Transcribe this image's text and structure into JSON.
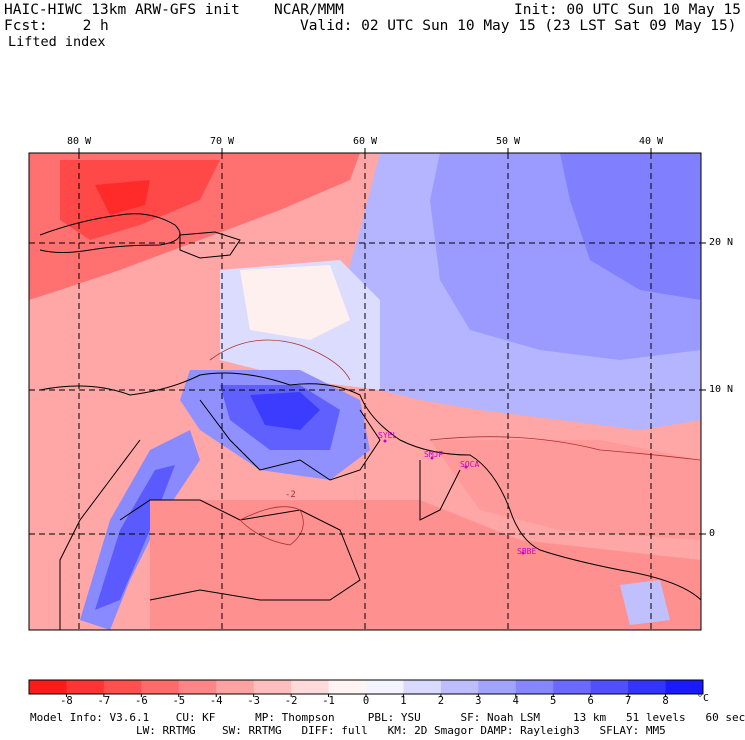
{
  "header": {
    "model": "HAIC-HIWC 13km ARW-GFS init",
    "org": "NCAR/MMM",
    "init": "Init: 00 UTC Sun 10 May 15",
    "fcst": "Fcst:    2 h",
    "valid": "Valid: 02 UTC Sun 10 May 15 (23 LST Sat 09 May 15)",
    "field": "Lifted index"
  },
  "map": {
    "lon_labels": [
      "80 W",
      "70 W",
      "60 W",
      "50 W",
      "40 W"
    ],
    "lat_labels": [
      "20 N",
      "10 N",
      "0"
    ],
    "stations": [
      "SYEL",
      "SMJP",
      "SOCA",
      "SBBE"
    ],
    "contour_label": "-2"
  },
  "colorbar": {
    "labels": [
      "-8",
      "-7",
      "-6",
      "-5",
      "-4",
      "-3",
      "-2",
      "-1",
      "0",
      "1",
      "2",
      "3",
      "4",
      "5",
      "6",
      "7",
      "8"
    ],
    "unit": "°C",
    "colors": [
      "#ff1a1a",
      "#ff3434",
      "#ff5050",
      "#ff6a6a",
      "#ff8686",
      "#ffa2a2",
      "#ffbebe",
      "#ffdada",
      "#fff4f4",
      "#f4f4ff",
      "#dadaff",
      "#bebeff",
      "#a2a2ff",
      "#8686ff",
      "#6a6aff",
      "#5050ff",
      "#3434ff",
      "#1a1aff"
    ]
  },
  "footer": {
    "line1": "Model Info: V3.6.1    CU: KF      MP: Thompson     PBL: YSU      SF: Noah LSM     13 km   51 levels   60 sec",
    "line2": "                LW: RRTMG    SW: RRTMG   DIFF: full   KM: 2D Smagor DAMP: Rayleigh3   SFLAY: MM5"
  }
}
